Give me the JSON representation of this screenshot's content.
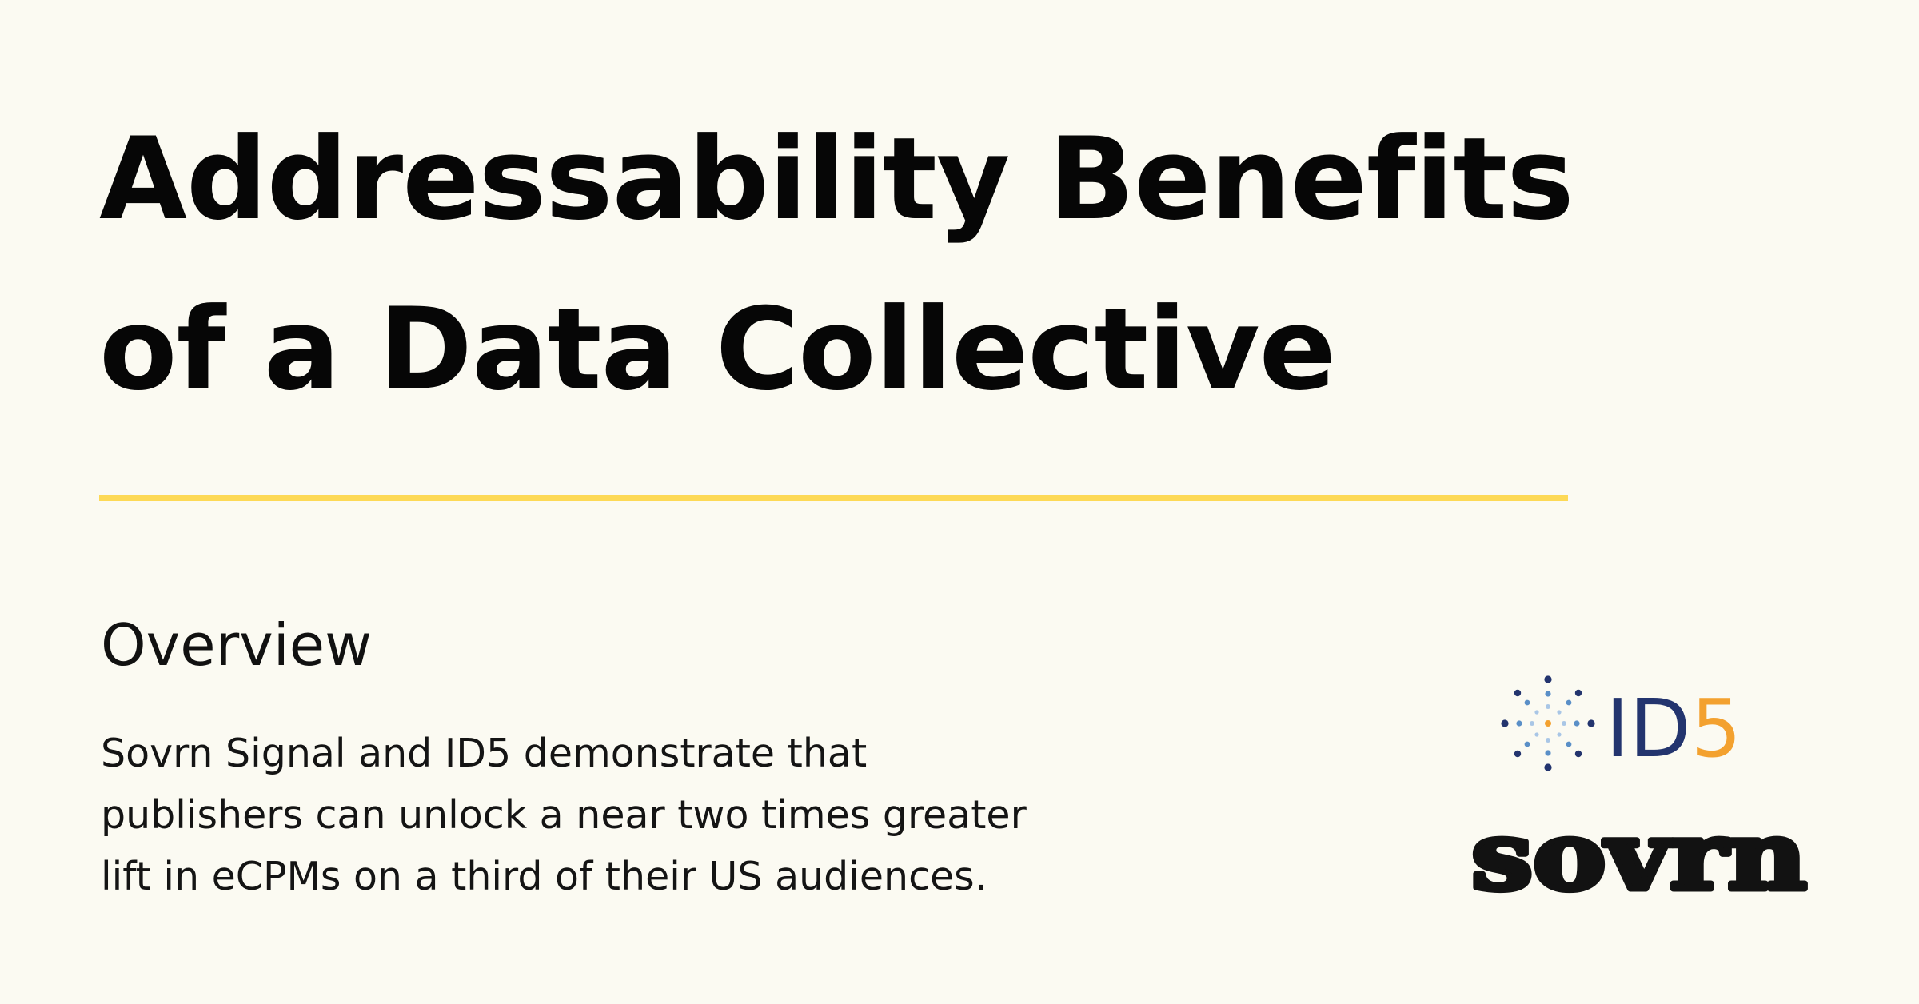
{
  "headline": {
    "line1": "Addressability Benefits",
    "line2": "of a Data Collective"
  },
  "overview": {
    "heading": "Overview",
    "lines": [
      "Sovrn Signal and ID5 demonstrate that",
      "publishers can unlock a near two times greater",
      "lift in eCPMs on a third of their US audiences."
    ]
  },
  "logos": {
    "id5": {
      "letters": "ID",
      "digit": "5",
      "letters_color": "#23346e",
      "digit_color": "#f3a12f",
      "dot_colors": [
        "#23346e",
        "#5a8fc7",
        "#a9c6e6",
        "#f3a12f"
      ]
    },
    "sovrn": {
      "wordmark": "sovrn",
      "color": "#121212"
    }
  },
  "colors": {
    "background": "#fbfaf2",
    "accent_rule": "#fdd956",
    "text": "#0a0a0a"
  }
}
